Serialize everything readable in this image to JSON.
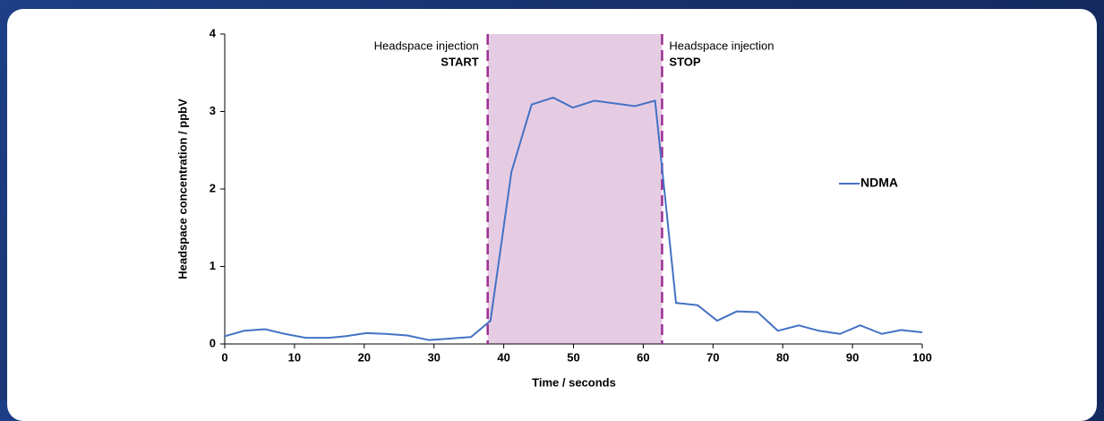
{
  "chart_data": {
    "type": "line",
    "x_label": "Time / seconds",
    "y_label": "Headspace concentration / ppbV",
    "x": [
      0,
      2.8,
      5.8,
      8.6,
      11.6,
      14.9,
      17.3,
      20.3,
      23.1,
      26.2,
      29.3,
      32.3,
      35.3,
      38.1,
      41.1,
      44.0,
      47.1,
      49.9,
      53.0,
      58.8,
      61.7,
      64.7,
      67.8,
      70.6,
      73.4,
      76.4,
      79.3,
      82.3,
      85.2,
      88.2,
      91.1,
      94.2,
      97.0,
      100
    ],
    "series": [
      {
        "name": "NDMA",
        "color": "#4472c4",
        "values": [
          0.1,
          0.17,
          0.19,
          0.13,
          0.08,
          0.08,
          0.1,
          0.14,
          0.13,
          0.11,
          0.05,
          0.07,
          0.09,
          0.3,
          2.22,
          3.09,
          3.18,
          3.05,
          3.14,
          3.07,
          3.14,
          0.53,
          0.5,
          0.3,
          0.42,
          0.41,
          0.17,
          0.24,
          0.17,
          0.13,
          0.24,
          0.13,
          0.18,
          0.15
        ]
      }
    ],
    "xlim": [
      0,
      100
    ],
    "xticks": [
      0,
      10,
      20,
      30,
      40,
      50,
      60,
      70,
      80,
      90,
      100
    ],
    "ylim": [
      0,
      4
    ],
    "yticks": [
      0,
      1,
      2,
      3,
      4
    ],
    "grid": false,
    "markers": [
      {
        "x": 37.7,
        "text": "Headspace injection",
        "label": "START",
        "color": "#9b2f93"
      },
      {
        "x": 62.7,
        "text": "Headspace injection",
        "label": "STOP",
        "color": "#9b2f93"
      }
    ],
    "shade_color": "#e6cce3"
  }
}
